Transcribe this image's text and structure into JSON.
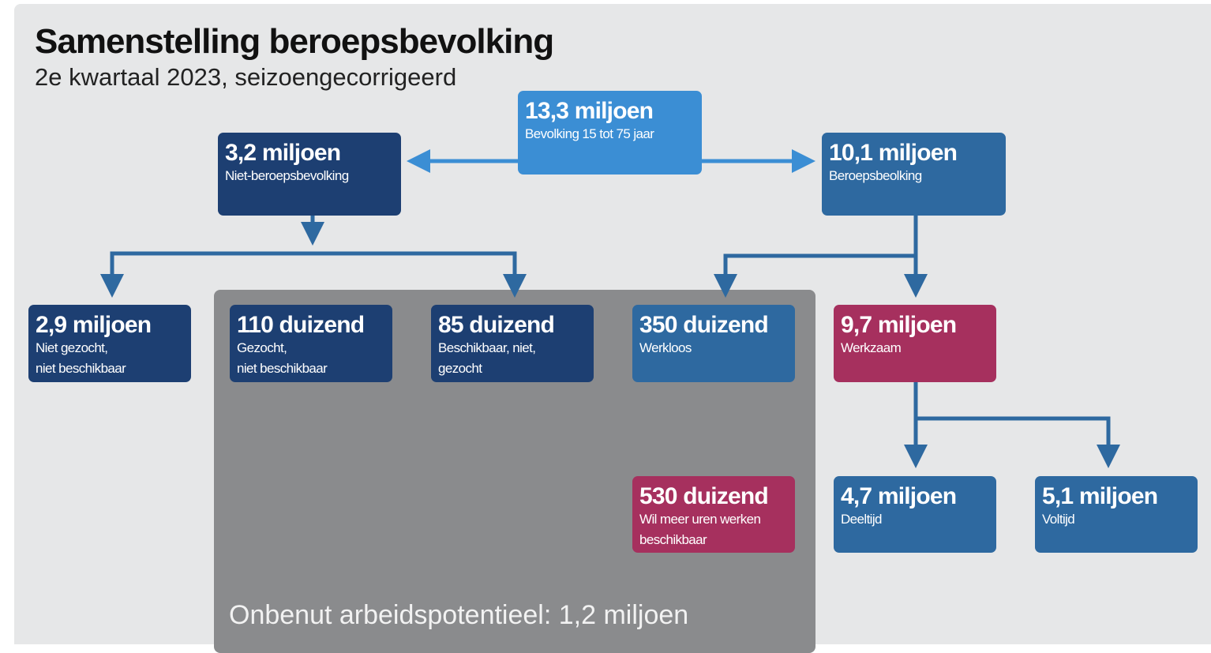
{
  "header": {
    "title": "Samenstelling beroepsbevolking",
    "subtitle": "2e kwartaal 2023, seizoengecorrigeerd"
  },
  "nodes": [
    {
      "value": "13,3 miljoen",
      "lines": [
        "Bevolking 15 tot 75 jaar"
      ]
    },
    {
      "value": "3,2 miljoen",
      "lines": [
        "Niet-beroepsbevolking"
      ]
    },
    {
      "value": "10,1 miljoen",
      "lines": [
        "Beroepsbeolking"
      ]
    },
    {
      "value": "2,9 miljoen",
      "lines": [
        "Niet gezocht,",
        "niet beschikbaar"
      ]
    },
    {
      "value": "110 duizend",
      "lines": [
        "Gezocht,",
        "niet beschikbaar"
      ]
    },
    {
      "value": "85 duizend",
      "lines": [
        "Beschikbaar, niet,",
        "gezocht"
      ]
    },
    {
      "value": "350 duizend",
      "lines": [
        "Werkloos"
      ]
    },
    {
      "value": "9,7 miljoen",
      "lines": [
        "Werkzaam"
      ]
    },
    {
      "value": "530 duizend",
      "lines": [
        "Wil meer uren werken",
        "beschikbaar"
      ]
    },
    {
      "value": "4,7 miljoen",
      "lines": [
        "Deeltijd"
      ]
    },
    {
      "value": "5,1 miljoen",
      "lines": [
        "Voltijd"
      ]
    }
  ],
  "area": {
    "label": "Onbenut arbeidspotentieel: 1,2 miljoen"
  }
}
